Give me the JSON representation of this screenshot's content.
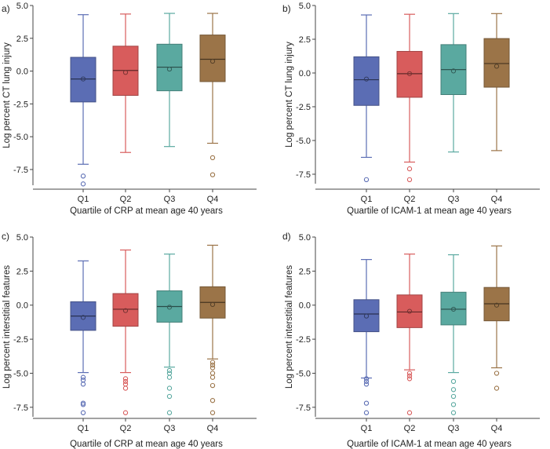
{
  "colors": {
    "Q1": "#5b6db4",
    "Q2": "#d85c5c",
    "Q3": "#5aa9a0",
    "Q4": "#9b7448"
  },
  "chart_data": [
    {
      "type": "box",
      "panel_label": "a)",
      "xlabel": "Quartile of CRP at mean age 40 years",
      "ylabel": "Log percent CT lung injury",
      "ylim": [
        -8.7,
        5.0
      ],
      "yticks": [
        "5.0",
        "2.5",
        "0.0",
        "-2.5",
        "-5.0",
        "-7.5"
      ],
      "ytick_values": [
        5.0,
        2.5,
        0.0,
        -2.5,
        -5.0,
        -7.5
      ],
      "categories": [
        "Q1",
        "Q2",
        "Q3",
        "Q4"
      ],
      "boxes": [
        {
          "name": "Q1",
          "whisker_low": -7.1,
          "q1": -2.35,
          "median": -0.6,
          "q3": 1.05,
          "whisker_high": 4.3,
          "mean": -0.6,
          "outliers": [
            -8.0,
            -8.6
          ]
        },
        {
          "name": "Q2",
          "whisker_low": -6.2,
          "q1": -1.85,
          "median": 0.05,
          "q3": 1.9,
          "whisker_high": 4.35,
          "mean": -0.1,
          "outliers": []
        },
        {
          "name": "Q3",
          "whisker_low": -5.75,
          "q1": -1.5,
          "median": 0.3,
          "q3": 2.05,
          "whisker_high": 4.4,
          "mean": 0.15,
          "outliers": []
        },
        {
          "name": "Q4",
          "whisker_low": -5.5,
          "q1": -0.8,
          "median": 0.9,
          "q3": 2.75,
          "whisker_high": 4.4,
          "mean": 0.75,
          "outliers": [
            -6.6,
            -7.9
          ]
        }
      ]
    },
    {
      "type": "box",
      "panel_label": "b)",
      "xlabel": "Quartile of ICAM-1 at mean age 40 years",
      "ylabel": "Log percent CT lung injury",
      "ylim": [
        -8.2,
        5.0
      ],
      "yticks": [
        "5.0",
        "2.5",
        "0.0",
        "-2.5",
        "-5.0",
        "-7.5"
      ],
      "ytick_values": [
        5.0,
        2.5,
        0.0,
        -2.5,
        -5.0,
        -7.5
      ],
      "categories": [
        "Q1",
        "Q2",
        "Q3",
        "Q4"
      ],
      "boxes": [
        {
          "name": "Q1",
          "whisker_low": -6.25,
          "q1": -2.4,
          "median": -0.5,
          "q3": 1.2,
          "whisker_high": 4.3,
          "mean": -0.45,
          "outliers": [
            -7.9
          ]
        },
        {
          "name": "Q2",
          "whisker_low": -6.6,
          "q1": -1.8,
          "median": -0.05,
          "q3": 1.6,
          "whisker_high": 4.35,
          "mean": -0.05,
          "outliers": [
            -7.1,
            -7.9
          ]
        },
        {
          "name": "Q3",
          "whisker_low": -5.85,
          "q1": -1.6,
          "median": 0.25,
          "q3": 2.1,
          "whisker_high": 4.4,
          "mean": 0.15,
          "outliers": []
        },
        {
          "name": "Q4",
          "whisker_low": -5.75,
          "q1": -1.05,
          "median": 0.7,
          "q3": 2.55,
          "whisker_high": 4.4,
          "mean": 0.5,
          "outliers": []
        }
      ]
    },
    {
      "type": "box",
      "panel_label": "c)",
      "xlabel": "Quartile of CRP at mean age 40 years",
      "ylabel": "Log percent interstitial features",
      "ylim": [
        -8.2,
        5.0
      ],
      "yticks": [
        "5.0",
        "2.5",
        "0.0",
        "-2.5",
        "-5.0",
        "-7.5"
      ],
      "ytick_values": [
        5.0,
        2.5,
        0.0,
        -2.5,
        -5.0,
        -7.5
      ],
      "categories": [
        "Q1",
        "Q2",
        "Q3",
        "Q4"
      ],
      "boxes": [
        {
          "name": "Q1",
          "whisker_low": -4.95,
          "q1": -1.85,
          "median": -0.8,
          "q3": 0.25,
          "whisker_high": 3.25,
          "mean": -0.9,
          "outliers": [
            -5.3,
            -5.5,
            -5.8,
            -7.2,
            -7.3,
            -7.9
          ]
        },
        {
          "name": "Q2",
          "whisker_low": -4.95,
          "q1": -1.55,
          "median": -0.3,
          "q3": 0.85,
          "whisker_high": 4.05,
          "mean": -0.4,
          "outliers": [
            -5.4,
            -5.6,
            -5.8,
            -6.1,
            -7.9
          ]
        },
        {
          "name": "Q3",
          "whisker_low": -4.55,
          "q1": -1.25,
          "median": -0.1,
          "q3": 1.05,
          "whisker_high": 3.75,
          "mean": -0.15,
          "outliers": [
            -4.8,
            -5.0,
            -5.3,
            -6.1,
            -6.7,
            -7.9
          ]
        },
        {
          "name": "Q4",
          "whisker_low": -3.95,
          "q1": -0.95,
          "median": 0.2,
          "q3": 1.35,
          "whisker_high": 4.4,
          "mean": 0.05,
          "outliers": [
            -4.2,
            -4.4,
            -4.6,
            -5.0,
            -5.3,
            -5.9,
            -7.0,
            -7.9
          ]
        }
      ]
    },
    {
      "type": "box",
      "panel_label": "d)",
      "xlabel": "Quartile of ICAM-1 at mean age 40 years",
      "ylabel": "Log percent interstitial features",
      "ylim": [
        -8.2,
        5.0
      ],
      "yticks": [
        "5.0",
        "2.5",
        "0.0",
        "-2.5",
        "-5.0",
        "-7.5"
      ],
      "ytick_values": [
        5.0,
        2.5,
        0.0,
        -2.5,
        -5.0,
        -7.5
      ],
      "categories": [
        "Q1",
        "Q2",
        "Q3",
        "Q4"
      ],
      "boxes": [
        {
          "name": "Q1",
          "whisker_low": -5.35,
          "q1": -1.95,
          "median": -0.65,
          "q3": 0.4,
          "whisker_high": 3.35,
          "mean": -0.8,
          "outliers": [
            -5.4,
            -5.6,
            -5.8,
            -7.2,
            -7.9
          ]
        },
        {
          "name": "Q2",
          "whisker_low": -4.75,
          "q1": -1.65,
          "median": -0.5,
          "q3": 0.75,
          "whisker_high": 3.75,
          "mean": -0.45,
          "outliers": [
            -5.0,
            -5.2,
            -5.4,
            -7.9
          ]
        },
        {
          "name": "Q3",
          "whisker_low": -4.95,
          "q1": -1.45,
          "median": -0.3,
          "q3": 0.95,
          "whisker_high": 3.7,
          "mean": -0.3,
          "outliers": [
            -5.6,
            -6.2,
            -6.7,
            -7.3,
            -7.9
          ]
        },
        {
          "name": "Q4",
          "whisker_low": -4.6,
          "q1": -1.15,
          "median": 0.1,
          "q3": 1.3,
          "whisker_high": 4.35,
          "mean": 0.0,
          "outliers": [
            -5.0,
            -6.1
          ]
        }
      ]
    }
  ]
}
